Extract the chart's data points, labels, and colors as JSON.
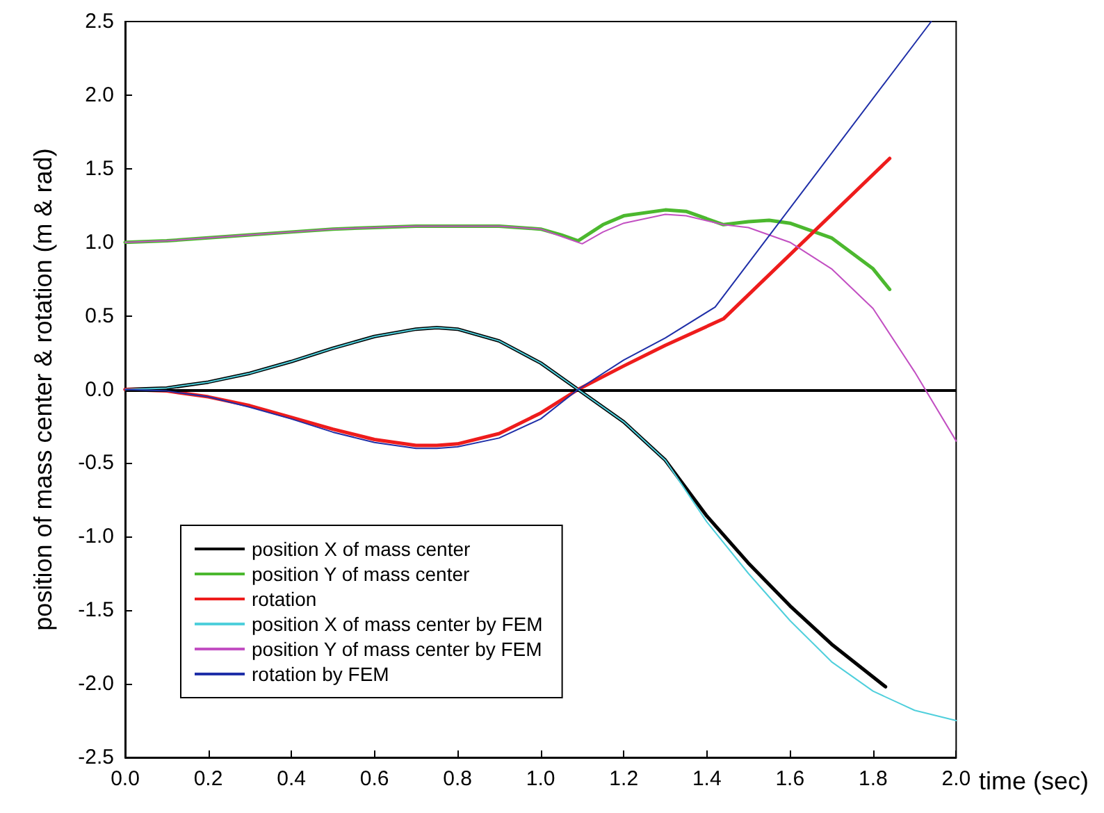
{
  "chart_data": {
    "type": "line",
    "xlabel": "time (sec)",
    "ylabel": "position of mass center & rotation (m & rad)",
    "xlim": [
      0,
      2
    ],
    "ylim": [
      -2.5,
      2.5
    ],
    "xticks": [
      {
        "value": 0,
        "label": "0.0"
      },
      0.2,
      0.4,
      0.6,
      0.8,
      {
        "value": 1,
        "label": "1.0"
      },
      1.2,
      1.4,
      1.6,
      1.8,
      {
        "value": 2,
        "label": "2.0"
      }
    ],
    "yticks": [
      {
        "value": -2.5,
        "label": "-2.5"
      },
      {
        "value": -2,
        "label": "-2.0"
      },
      {
        "value": -1.5,
        "label": "-1.5"
      },
      {
        "value": -1,
        "label": "-1.0"
      },
      {
        "value": -0.5,
        "label": "-0.5"
      },
      {
        "value": 0,
        "label": "0.0"
      },
      {
        "value": 0.5,
        "label": "0.5"
      },
      {
        "value": 1,
        "label": "1.0"
      },
      {
        "value": 1.5,
        "label": "1.5"
      },
      {
        "value": 2,
        "label": "2.0"
      },
      {
        "value": 2.5,
        "label": "2.5"
      }
    ],
    "grid": false,
    "legend": "bottom left",
    "marker": "none",
    "line_style": "solid",
    "ref_lines": [
      {
        "axis": "y",
        "value": 0,
        "color": "#000000"
      }
    ],
    "series": [
      {
        "name": "position X of mass center",
        "color": "#000000",
        "x": [
          0,
          0.1,
          0.2,
          0.3,
          0.4,
          0.5,
          0.6,
          0.7,
          0.75,
          0.8,
          0.9,
          1.0,
          1.09,
          1.2,
          1.3,
          1.4,
          1.5,
          1.6,
          1.7,
          1.83
        ],
        "values": [
          0,
          0.01,
          0.05,
          0.11,
          0.19,
          0.28,
          0.36,
          0.41,
          0.42,
          0.41,
          0.33,
          0.18,
          0,
          -0.22,
          -0.48,
          -0.86,
          -1.18,
          -1.47,
          -1.73,
          -2.02
        ]
      },
      {
        "name": "position Y of mass center",
        "color": "#4cb82f",
        "x": [
          0,
          0.1,
          0.2,
          0.3,
          0.4,
          0.5,
          0.6,
          0.7,
          0.8,
          0.9,
          1.0,
          1.05,
          1.09,
          1.15,
          1.2,
          1.3,
          1.35,
          1.44,
          1.5,
          1.55,
          1.6,
          1.7,
          1.8,
          1.84
        ],
        "values": [
          1.0,
          1.01,
          1.03,
          1.05,
          1.07,
          1.09,
          1.1,
          1.11,
          1.11,
          1.11,
          1.09,
          1.05,
          1.01,
          1.12,
          1.18,
          1.22,
          1.21,
          1.12,
          1.14,
          1.15,
          1.13,
          1.03,
          0.82,
          0.68
        ]
      },
      {
        "name": "rotation",
        "color": "#ee1c1c",
        "x": [
          0,
          0.1,
          0.2,
          0.3,
          0.4,
          0.5,
          0.6,
          0.7,
          0.75,
          0.8,
          0.9,
          1.0,
          1.09,
          1.2,
          1.3,
          1.44,
          1.84
        ],
        "values": [
          0,
          -0.01,
          -0.05,
          -0.11,
          -0.19,
          -0.27,
          -0.34,
          -0.38,
          -0.38,
          -0.37,
          -0.3,
          -0.16,
          0,
          0.16,
          0.3,
          0.48,
          1.57
        ]
      },
      {
        "name": "position X of mass center by FEM",
        "color": "#4fcfdc",
        "x": [
          0,
          0.1,
          0.2,
          0.3,
          0.4,
          0.5,
          0.6,
          0.7,
          0.75,
          0.8,
          0.9,
          1.0,
          1.09,
          1.2,
          1.3,
          1.4,
          1.5,
          1.6,
          1.7,
          1.8,
          1.9,
          2.0
        ],
        "values": [
          0,
          0.01,
          0.05,
          0.11,
          0.19,
          0.28,
          0.36,
          0.41,
          0.42,
          0.41,
          0.33,
          0.18,
          0,
          -0.22,
          -0.48,
          -0.9,
          -1.25,
          -1.57,
          -1.85,
          -2.05,
          -2.18,
          -2.25
        ]
      },
      {
        "name": "position Y of mass center by FEM",
        "color": "#c24fc2",
        "x": [
          0,
          0.1,
          0.2,
          0.3,
          0.4,
          0.5,
          0.6,
          0.7,
          0.8,
          0.9,
          1.0,
          1.05,
          1.1,
          1.15,
          1.2,
          1.3,
          1.35,
          1.44,
          1.5,
          1.6,
          1.7,
          1.8,
          1.9,
          2.0
        ],
        "values": [
          1.0,
          1.01,
          1.03,
          1.05,
          1.07,
          1.09,
          1.1,
          1.11,
          1.11,
          1.11,
          1.09,
          1.04,
          0.99,
          1.07,
          1.13,
          1.19,
          1.18,
          1.12,
          1.1,
          1.0,
          0.82,
          0.55,
          0.12,
          -0.35
        ]
      },
      {
        "name": "rotation by FEM",
        "color": "#1f2fa8",
        "x": [
          0,
          0.1,
          0.2,
          0.3,
          0.4,
          0.5,
          0.6,
          0.7,
          0.75,
          0.8,
          0.9,
          1.0,
          1.09,
          1.2,
          1.3,
          1.42,
          1.94
        ],
        "values": [
          0,
          -0.01,
          -0.05,
          -0.12,
          -0.2,
          -0.29,
          -0.36,
          -0.4,
          -0.4,
          -0.39,
          -0.33,
          -0.2,
          0,
          0.2,
          0.35,
          0.56,
          2.5
        ]
      }
    ]
  }
}
